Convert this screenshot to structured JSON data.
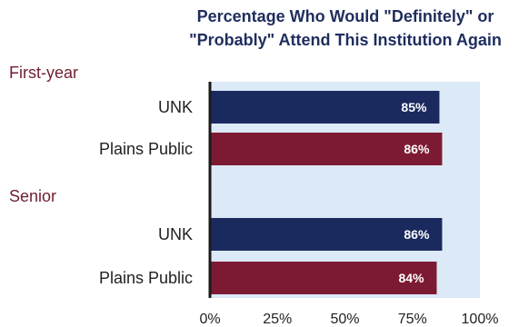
{
  "colors": {
    "navy": "#1b2a5e",
    "maroon": "#7d1a33",
    "plot_bg": "#dce9f7",
    "axis": "#1a1a1a"
  },
  "chart_data": {
    "type": "bar",
    "orientation": "horizontal",
    "title": "Percentage Who Would \"Definitely\" or \"Probably\" Attend This Institution Again",
    "title_lines": [
      "Percentage Who Would \"Definitely\" or",
      "\"Probably\" Attend This Institution Again"
    ],
    "groups": [
      {
        "label": "First-year",
        "bars": [
          {
            "category": "UNK",
            "value": 85,
            "label": "85%",
            "color": "#1b2a5e"
          },
          {
            "category": "Plains Public",
            "value": 86,
            "label": "86%",
            "color": "#7d1a33"
          }
        ]
      },
      {
        "label": "Senior",
        "bars": [
          {
            "category": "UNK",
            "value": 86,
            "label": "86%",
            "color": "#1b2a5e"
          },
          {
            "category": "Plains Public",
            "value": 84,
            "label": "84%",
            "color": "#7d1a33"
          }
        ]
      }
    ],
    "xlim": [
      0,
      100
    ],
    "x_ticks": [
      0,
      25,
      50,
      75,
      100
    ],
    "x_tick_labels": [
      "0%",
      "25%",
      "50%",
      "75%",
      "100%"
    ],
    "grid": false,
    "legend": "none"
  }
}
